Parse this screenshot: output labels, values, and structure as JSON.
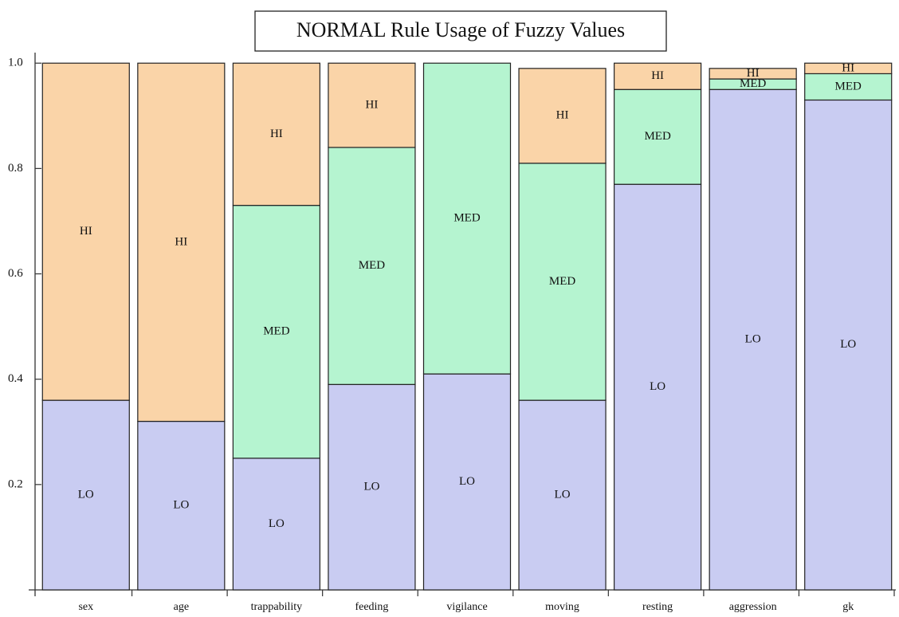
{
  "chart_data": {
    "type": "stacked_bar",
    "title": "NORMAL Rule Usage of Fuzzy Values",
    "categories": [
      "sex",
      "age",
      "trappability",
      "feeding",
      "vigilance",
      "moving",
      "resting",
      "aggression",
      "gk"
    ],
    "series": [
      {
        "name": "LO",
        "color": "#c9ccf2",
        "values": [
          0.36,
          0.32,
          0.25,
          0.39,
          0.41,
          0.36,
          0.77,
          0.95,
          0.93
        ]
      },
      {
        "name": "MED",
        "color": "#b5f4d0",
        "values": [
          0,
          0,
          0.48,
          0.45,
          0.59,
          0.45,
          0.18,
          0.02,
          0.05
        ]
      },
      {
        "name": "HI",
        "color": "#fad4a8",
        "values": [
          0.64,
          0.68,
          0.27,
          0.16,
          0,
          0.18,
          0.05,
          0.02,
          0.02
        ]
      }
    ],
    "ylim": [
      0,
      1.02
    ],
    "yticks": [
      0.2,
      0.4,
      0.6,
      0.8,
      {
        "value": 1,
        "label": "1.0"
      }
    ]
  }
}
